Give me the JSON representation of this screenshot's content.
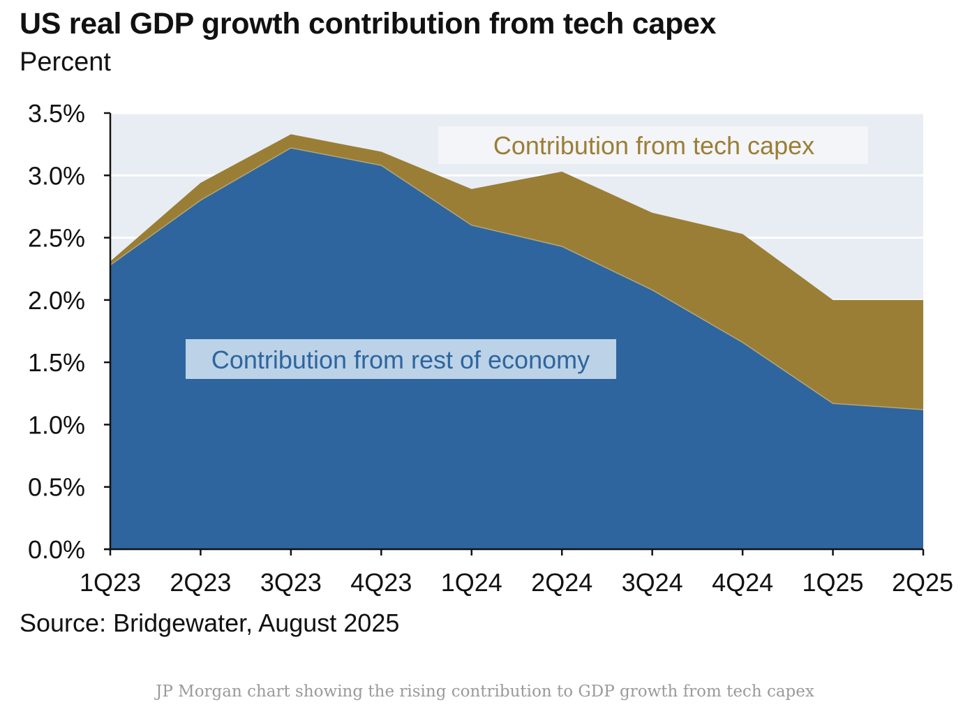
{
  "header": {
    "title": "US real GDP growth contribution from tech capex",
    "subtitle": "Percent"
  },
  "footer": {
    "source": "Source: Bridgewater, August 2025",
    "caption": "JP Morgan chart showing the rising contribution to GDP growth from tech capex"
  },
  "chart_data": {
    "type": "area",
    "stacked": true,
    "title": "US real GDP growth contribution from tech capex",
    "ylabel": "Percent",
    "categories": [
      "1Q23",
      "2Q23",
      "3Q23",
      "4Q23",
      "1Q24",
      "2Q24",
      "3Q24",
      "4Q24",
      "1Q25",
      "2Q25"
    ],
    "ylim": [
      0,
      3.5
    ],
    "yticks": [
      0,
      0.5,
      1.0,
      1.5,
      2.0,
      2.5,
      3.0,
      3.5
    ],
    "ytick_labels": [
      "0.0%",
      "0.5%",
      "1.0%",
      "1.5%",
      "2.0%",
      "2.5%",
      "3.0%",
      "3.5%"
    ],
    "grid": true,
    "series": [
      {
        "name": "Contribution from rest of economy",
        "color": "#2e659e",
        "values": [
          2.28,
          2.8,
          3.22,
          3.08,
          2.6,
          2.43,
          2.08,
          1.66,
          1.17,
          1.12
        ]
      },
      {
        "name": "Contribution from tech capex",
        "color": "#9b7e35",
        "values": [
          0.03,
          0.14,
          0.11,
          0.11,
          0.29,
          0.6,
          0.62,
          0.87,
          0.83,
          0.88
        ]
      }
    ],
    "annotations": [
      {
        "text": "Contribution from tech capex",
        "series": 1,
        "label_color": "#9b7e35"
      },
      {
        "text": "Contribution from rest of economy",
        "series": 0,
        "label_color": "#2e659e"
      }
    ],
    "colors": {
      "plot_background": "#e8edf3",
      "gridline": "#ffffff",
      "axis": "#111111"
    }
  }
}
